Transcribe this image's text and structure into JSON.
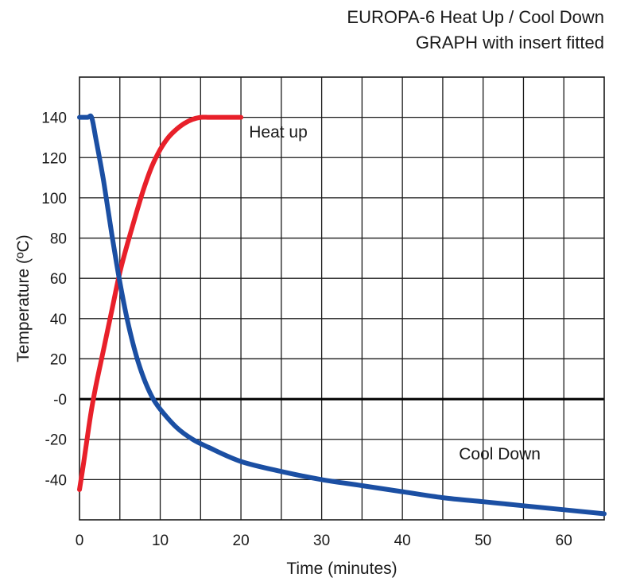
{
  "chart_data": {
    "type": "line",
    "title": "EUROPA-6 Heat Up / Cool Down",
    "subtitle": "GRAPH with insert fitted",
    "xlabel": "Time (minutes)",
    "ylabel": "Temperature (ºC)",
    "xlim": [
      0,
      65
    ],
    "ylim": [
      -60,
      160
    ],
    "x_ticks": [
      0,
      10,
      20,
      30,
      40,
      50,
      60
    ],
    "x_tick_labels": [
      "0",
      "10",
      "20",
      "30",
      "40",
      "50",
      "60"
    ],
    "y_ticks": [
      140,
      120,
      100,
      80,
      60,
      40,
      20,
      0,
      -20,
      -40
    ],
    "y_tick_labels": [
      "140",
      "120",
      "100",
      "80",
      "60",
      "40",
      "20",
      "-0",
      "-20",
      "-40"
    ],
    "grid": true,
    "grid_x_step": 5,
    "grid_y_step": 20,
    "zero_line": true,
    "series": [
      {
        "name": "Heat up",
        "color": "#e8202a",
        "x": [
          0,
          0.5,
          1,
          1.5,
          2,
          3,
          4,
          5,
          6,
          7,
          8,
          9,
          10,
          11,
          12,
          13,
          14,
          15,
          16,
          17,
          18,
          19,
          20
        ],
        "y": [
          -45,
          -32,
          -18,
          -5,
          6,
          25,
          44,
          63,
          78,
          92,
          105,
          116,
          124,
          130,
          134,
          137,
          139,
          140,
          140,
          140,
          140,
          140,
          140
        ]
      },
      {
        "name": "Cool Down",
        "color": "#1b4fa3",
        "x": [
          0,
          1,
          1.5,
          2,
          3,
          4,
          5,
          6,
          7,
          8,
          9,
          10,
          12,
          14,
          16,
          20,
          25,
          30,
          35,
          40,
          45,
          50,
          55,
          60,
          65
        ],
        "y": [
          140,
          140,
          140,
          130,
          108,
          82,
          58,
          38,
          22,
          10,
          1,
          -5,
          -14,
          -20,
          -24,
          -31,
          -36,
          -40,
          -43,
          -46,
          -49,
          -51,
          -53,
          -55,
          -57
        ]
      }
    ],
    "annotations": [
      {
        "text": "Heat up",
        "x": 21,
        "y": 130
      },
      {
        "text": "Cool Down",
        "x": 47,
        "y": -30
      }
    ]
  }
}
